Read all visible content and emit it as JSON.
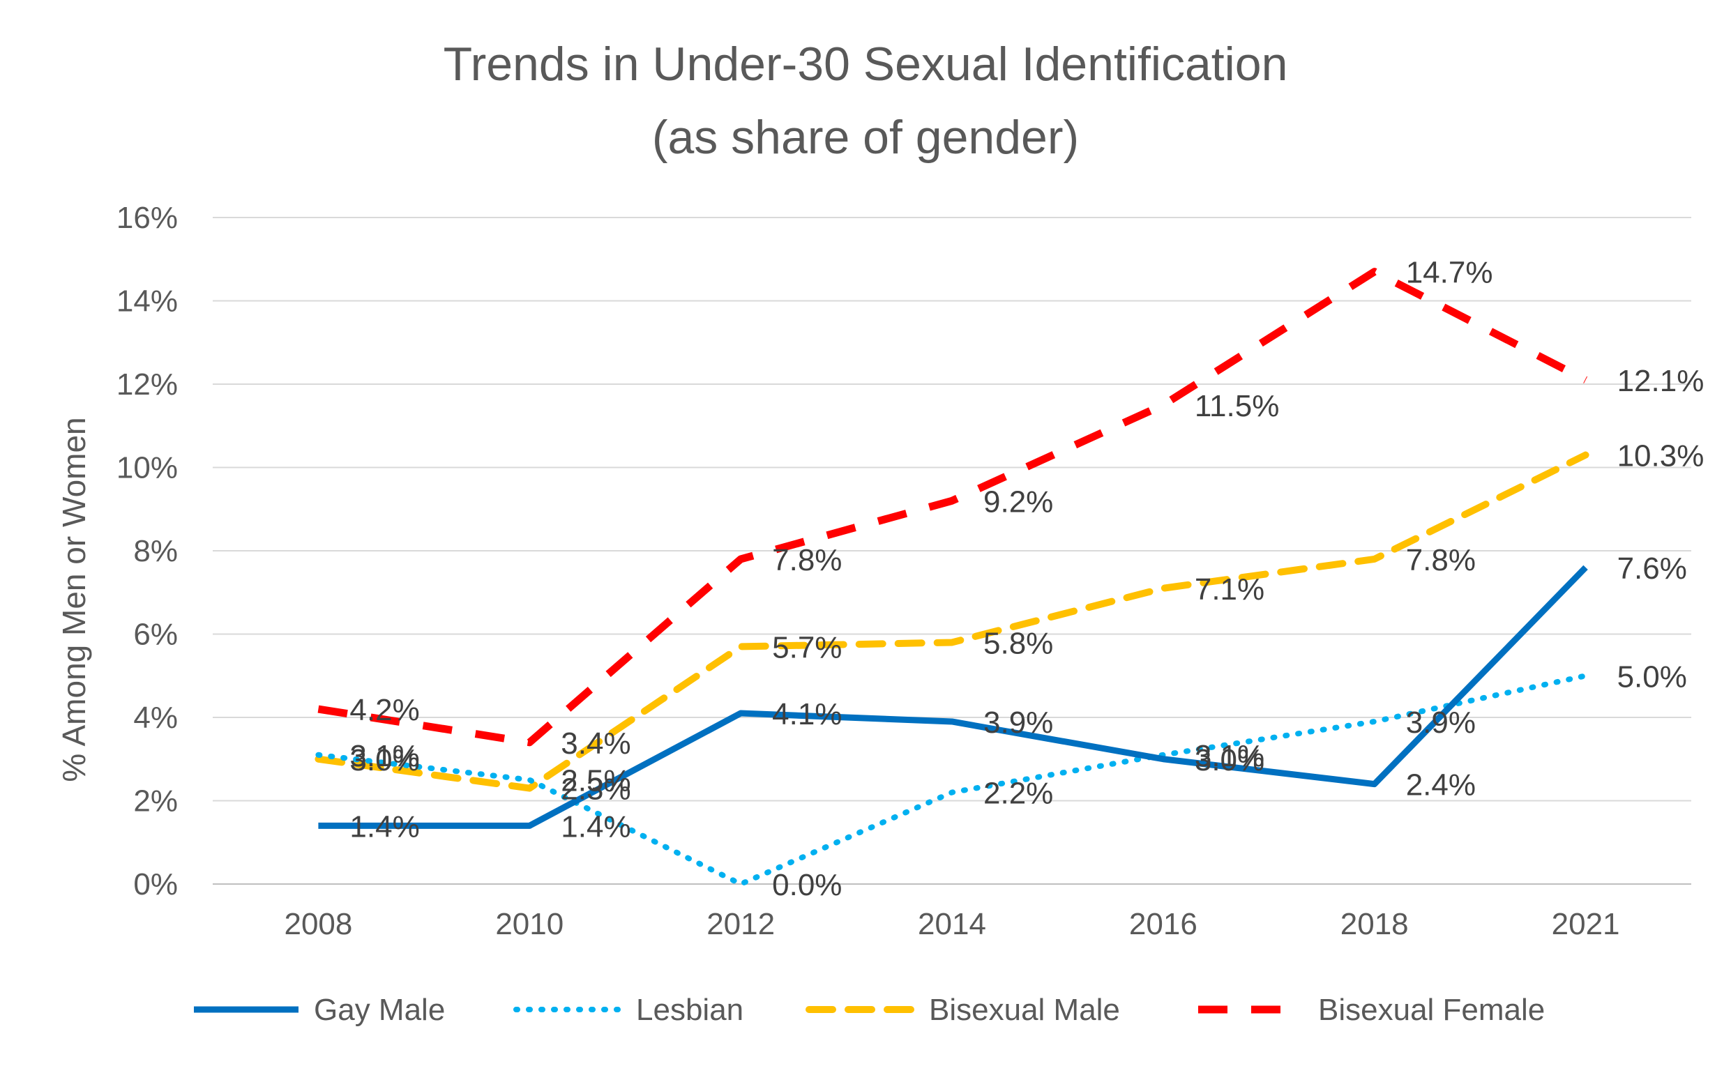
{
  "chart_data": {
    "type": "line",
    "title": "Trends in Under-30 Sexual Identification",
    "subtitle": "(as share of gender)",
    "xlabel": "",
    "ylabel": "% Among Men or Women",
    "categories": [
      "2008",
      "2010",
      "2012",
      "2014",
      "2016",
      "2018",
      "2021"
    ],
    "y_ticks": [
      "0%",
      "2%",
      "4%",
      "6%",
      "8%",
      "10%",
      "12%",
      "14%",
      "16%"
    ],
    "ylim": [
      0,
      16
    ],
    "grid": "horizontal",
    "legend_position": "bottom",
    "series": [
      {
        "name": "Gay Male",
        "style": "solid",
        "color": "#0070C0",
        "values": [
          1.4,
          1.4,
          4.1,
          3.9,
          3.0,
          2.4,
          7.6
        ],
        "labels": [
          "1.4%",
          "1.4%",
          "4.1%",
          "3.9%",
          "3.0%",
          "2.4%",
          "7.6%"
        ]
      },
      {
        "name": "Lesbian",
        "style": "dotted",
        "color": "#00B0F0",
        "values": [
          3.1,
          2.5,
          0.0,
          2.2,
          3.1,
          3.9,
          5.0
        ],
        "labels": [
          "3.1%",
          "2.5%",
          "0.0%",
          "2.2%",
          "3.1%",
          "3.9%",
          "5.0%"
        ]
      },
      {
        "name": "Bisexual Male",
        "style": "dashed",
        "color": "#FFC000",
        "values": [
          3.0,
          2.3,
          5.7,
          5.8,
          7.1,
          7.8,
          10.3
        ],
        "labels": [
          "3.0%",
          "2.3%",
          "5.7%",
          "5.8%",
          "7.1%",
          "7.8%",
          "10.3%"
        ]
      },
      {
        "name": "Bisexual Female",
        "style": "long-dashed",
        "color": "#FF0000",
        "values": [
          4.2,
          3.4,
          7.8,
          9.2,
          11.5,
          14.7,
          12.1
        ],
        "labels": [
          "4.2%",
          "3.4%",
          "7.8%",
          "9.2%",
          "11.5%",
          "14.7%",
          "12.1%"
        ]
      }
    ]
  }
}
